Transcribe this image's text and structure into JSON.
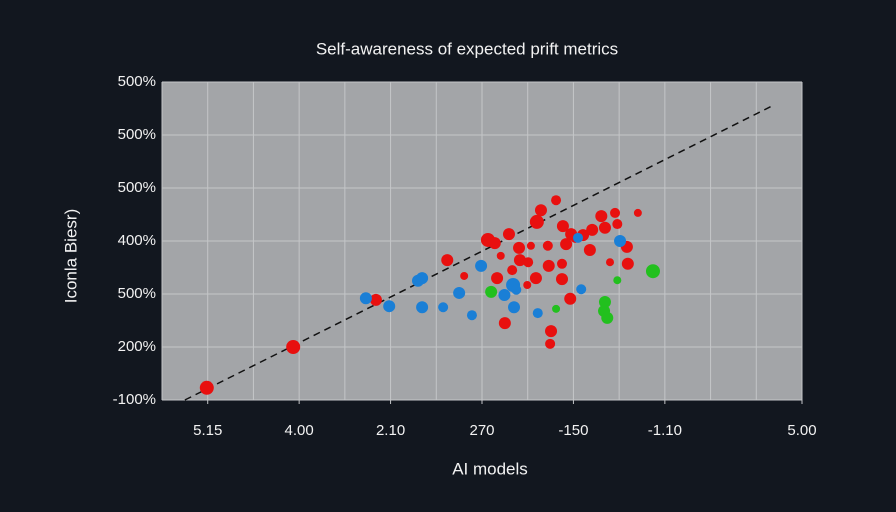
{
  "chart_data": {
    "type": "scatter",
    "title": "Self-awareness of expected prift metrics",
    "xlabel": "AI models",
    "ylabel": "Iconla Biesr)",
    "xlim": [
      0,
      14
    ],
    "ylim": [
      0,
      6
    ],
    "xticks": [
      {
        "value": 1,
        "label": "5.15"
      },
      {
        "value": 3,
        "label": "4.00"
      },
      {
        "value": 5,
        "label": "2.10"
      },
      {
        "value": 7,
        "label": "270"
      },
      {
        "value": 9,
        "label": "-150"
      },
      {
        "value": 11,
        "label": "-1.10"
      },
      {
        "value": 14,
        "label": "5.00"
      }
    ],
    "yticks": [
      {
        "value": 0,
        "label": "-100%"
      },
      {
        "value": 1,
        "label": "200%"
      },
      {
        "value": 2,
        "label": "500%"
      },
      {
        "value": 3,
        "label": "400%"
      },
      {
        "value": 4,
        "label": "500%"
      },
      {
        "value": 5,
        "label": "500%"
      },
      {
        "value": 6,
        "label": "500%"
      }
    ],
    "grid": true,
    "trend_line": {
      "x": [
        0.5,
        13.35
      ],
      "y": [
        0,
        5.55
      ]
    },
    "series": [
      {
        "color": "#e8100f",
        "x": [
          0.98,
          2.87,
          4.68,
          6.24,
          6.61,
          7.13,
          7.28,
          7.59,
          7.41,
          7.33,
          7.5,
          7.66,
          7.83,
          8.01,
          7.81,
          7.99,
          8.18,
          8.07,
          8.2,
          8.29,
          8.44,
          8.46,
          8.62,
          8.75,
          8.75,
          8.77,
          8.84,
          8.95,
          9.04,
          8.93,
          8.51,
          8.49,
          9.21,
          9.36,
          9.41,
          9.61,
          9.69,
          9.91,
          9.96,
          9.8,
          10.17,
          10.19,
          10.41
        ],
        "values": [
          0.23,
          1.0,
          1.89,
          2.64,
          2.34,
          3.02,
          2.96,
          3.13,
          2.72,
          2.3,
          1.45,
          2.45,
          2.64,
          2.6,
          2.87,
          2.17,
          2.3,
          2.91,
          3.36,
          3.58,
          2.91,
          2.53,
          3.77,
          2.57,
          2.28,
          3.28,
          2.94,
          3.13,
          3.06,
          1.91,
          1.3,
          1.06,
          3.11,
          2.83,
          3.21,
          3.47,
          3.25,
          3.53,
          3.32,
          2.6,
          2.89,
          2.57,
          3.53
        ],
        "sizes": [
          7,
          7,
          6,
          6,
          4,
          7,
          6,
          6,
          4,
          6,
          6,
          5,
          6,
          5,
          6,
          4,
          6,
          4,
          7,
          6,
          5,
          6,
          5,
          5,
          6,
          6,
          6,
          6,
          5,
          6,
          6,
          5,
          6,
          6,
          6,
          6,
          6,
          5,
          5,
          4,
          6,
          6,
          4
        ]
      },
      {
        "color": "#1a7fd6",
        "x": [
          4.46,
          4.97,
          5.6,
          5.69,
          5.69,
          6.15,
          6.5,
          6.78,
          6.98,
          7.49,
          7.68,
          7.75,
          7.7,
          8.22,
          9.17,
          9.1,
          10.02
        ],
        "values": [
          1.92,
          1.77,
          2.25,
          2.3,
          1.75,
          1.75,
          2.02,
          1.6,
          2.53,
          1.98,
          2.17,
          2.08,
          1.75,
          1.64,
          2.09,
          3.06,
          3.0
        ],
        "sizes": [
          6,
          6,
          6,
          6,
          6,
          5,
          6,
          5,
          6,
          6,
          7,
          5,
          6,
          5,
          5,
          5,
          6
        ]
      },
      {
        "color": "#22c01e",
        "x": [
          7.2,
          8.62,
          9.69,
          9.67,
          9.74,
          9.96,
          10.74
        ],
        "values": [
          2.04,
          1.72,
          1.85,
          1.68,
          1.55,
          2.26,
          2.43
        ],
        "sizes": [
          6,
          4,
          6,
          6,
          6,
          4,
          7
        ]
      }
    ]
  }
}
